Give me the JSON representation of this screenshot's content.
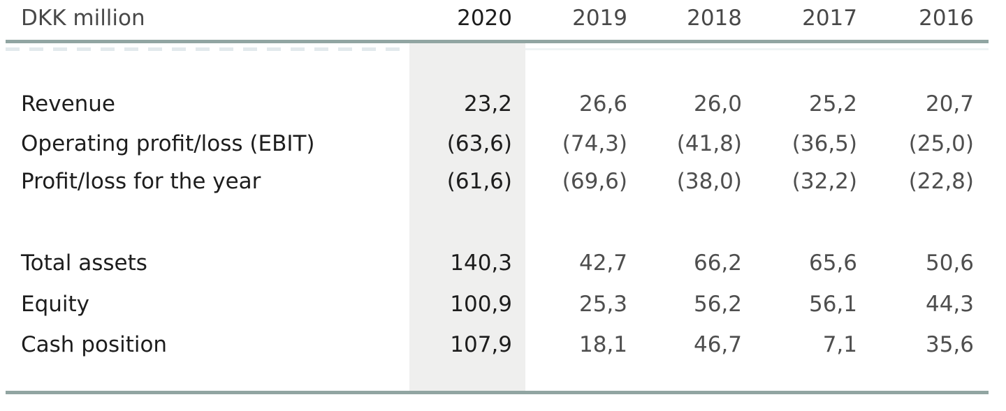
{
  "table": {
    "unit_label": "DKK million",
    "years": [
      "2020",
      "2019",
      "2018",
      "2017",
      "2016"
    ],
    "highlighted_year": "2020",
    "rows": [
      {
        "label": "Revenue",
        "values": [
          "23,2",
          "26,6",
          "26,0",
          "25,2",
          "20,7"
        ]
      },
      {
        "label": "Operating profit/loss (EBIT)",
        "values": [
          "(63,6)",
          "(74,3)",
          "(41,8)",
          "(36,5)",
          "(25,0)"
        ]
      },
      {
        "label": "Profit/loss for the year",
        "values": [
          "(61,6)",
          "(69,6)",
          "(38,0)",
          "(32,2)",
          "(22,8)"
        ]
      },
      {
        "label": "Total assets",
        "values": [
          "140,3",
          "42,7",
          "66,2",
          "65,6",
          "50,6"
        ]
      },
      {
        "label": "Equity",
        "values": [
          "100,9",
          "25,3",
          "56,2",
          "56,1",
          "44,3"
        ]
      },
      {
        "label": "Cash position",
        "values": [
          "107,9",
          "18,1",
          "46,7",
          "7,1",
          "35,6"
        ]
      }
    ],
    "colors": {
      "rule": "#91a5a2",
      "highlight_band": "#efefee",
      "header_text": "#484848",
      "label_text": "#1d1d1d",
      "value_text": "#4e4e4e",
      "highlight_value_text": "#1d1d1d"
    }
  }
}
